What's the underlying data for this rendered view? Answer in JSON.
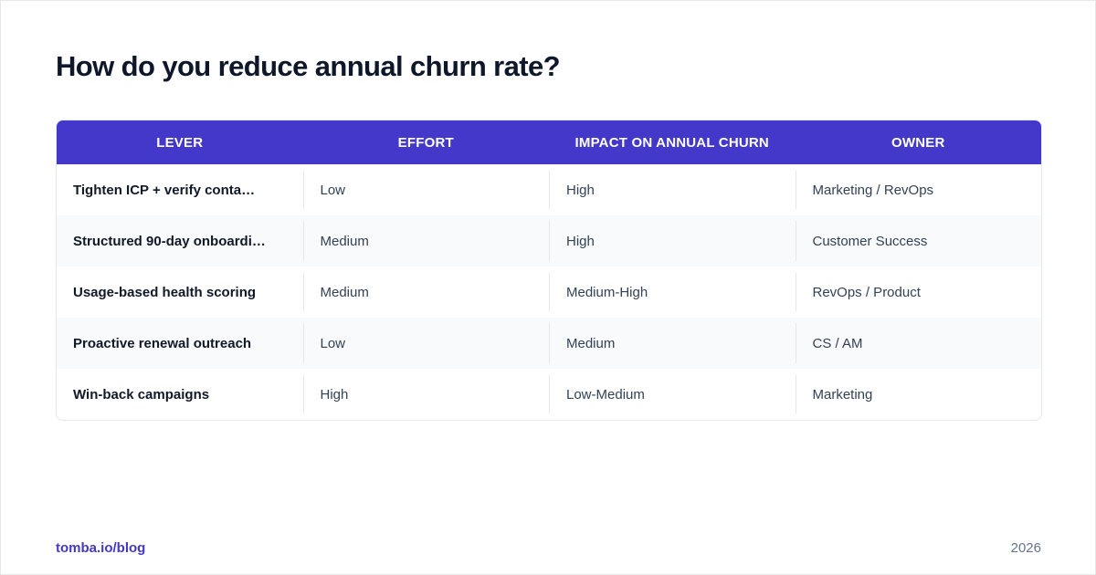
{
  "title": "How do you reduce annual churn rate?",
  "table": {
    "headers": [
      "LEVER",
      "EFFORT",
      "IMPACT ON ANNUAL CHURN",
      "OWNER"
    ],
    "rows": [
      {
        "lever": "Tighten ICP + verify conta…",
        "effort": "Low",
        "impact": "High",
        "owner": "Marketing / RevOps"
      },
      {
        "lever": "Structured 90-day onboardi…",
        "effort": "Medium",
        "impact": "High",
        "owner": "Customer Success"
      },
      {
        "lever": "Usage-based health scoring",
        "effort": "Medium",
        "impact": "Medium-High",
        "owner": "RevOps / Product"
      },
      {
        "lever": "Proactive renewal outreach",
        "effort": "Low",
        "impact": "Medium",
        "owner": "CS / AM"
      },
      {
        "lever": "Win-back campaigns",
        "effort": "High",
        "impact": "Low-Medium",
        "owner": "Marketing"
      }
    ]
  },
  "footer": {
    "link": "tomba.io/blog",
    "year": "2026"
  },
  "colors": {
    "header_bg": "#4338ca",
    "accent": "#4338ca",
    "alt_row": "#f8fafc",
    "title": "#0f172a"
  }
}
